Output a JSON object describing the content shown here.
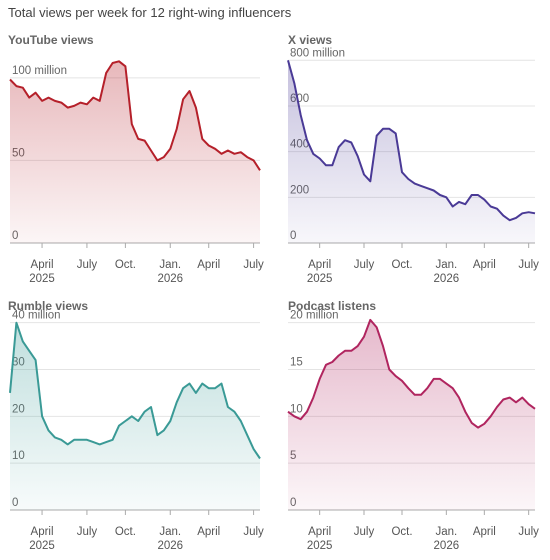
{
  "title": "Total views per week for 12 right-wing influencers",
  "chart_data": [
    {
      "type": "area",
      "title": "YouTube views",
      "color": "#b5202a",
      "categories": [
        null,
        null,
        null,
        null,
        null,
        "April 2025",
        null,
        null,
        null,
        null,
        null,
        null,
        "July",
        null,
        null,
        null,
        null,
        null,
        "Oct.",
        null,
        null,
        null,
        null,
        null,
        null,
        "Jan. 2026",
        null,
        null,
        null,
        null,
        null,
        "April",
        null,
        null,
        null,
        null,
        null,
        null,
        "July",
        null
      ],
      "values": [
        99,
        95,
        94,
        88,
        91,
        86,
        88,
        86,
        85,
        82,
        83,
        85,
        84,
        88,
        86,
        103,
        109,
        110,
        107,
        72,
        63,
        62,
        56,
        50,
        52,
        57,
        69,
        87,
        92,
        82,
        63,
        59,
        57,
        54,
        56,
        54,
        55,
        52,
        50,
        44
      ],
      "ylim": [
        0,
        112
      ],
      "yticks": [
        0,
        50,
        {
          "value": 100,
          "label": "100 million"
        }
      ],
      "grid": true
    },
    {
      "type": "area",
      "title": "X views",
      "color": "#4a3a96",
      "categories": [
        null,
        null,
        null,
        null,
        null,
        "April 2025",
        null,
        null,
        null,
        null,
        null,
        null,
        "July",
        null,
        null,
        null,
        null,
        null,
        "Oct.",
        null,
        null,
        null,
        null,
        null,
        null,
        "Jan. 2026",
        null,
        null,
        null,
        null,
        null,
        "April",
        null,
        null,
        null,
        null,
        null,
        null,
        "July",
        null
      ],
      "values": [
        800,
        700,
        560,
        450,
        390,
        370,
        340,
        340,
        420,
        450,
        440,
        380,
        300,
        270,
        470,
        500,
        500,
        480,
        310,
        280,
        260,
        250,
        240,
        230,
        210,
        200,
        160,
        180,
        170,
        210,
        210,
        190,
        160,
        150,
        120,
        100,
        110,
        130,
        135,
        130
      ],
      "ylim": [
        0,
        810
      ],
      "yticks": [
        0,
        200,
        400,
        600,
        {
          "value": 800,
          "label": "800 million"
        }
      ],
      "grid": true
    },
    {
      "type": "area",
      "title": "Rumble views",
      "color": "#3a9a96",
      "categories": [
        null,
        null,
        null,
        null,
        null,
        "April 2025",
        null,
        null,
        null,
        null,
        null,
        null,
        "July",
        null,
        null,
        null,
        null,
        null,
        "Oct.",
        null,
        null,
        null,
        null,
        null,
        null,
        "Jan. 2026",
        null,
        null,
        null,
        null,
        null,
        "April",
        null,
        null,
        null,
        null,
        null,
        null,
        "July",
        null
      ],
      "values": [
        25,
        40,
        36,
        34,
        32,
        20,
        17,
        15.5,
        15,
        14,
        15,
        15,
        15,
        14.5,
        14,
        14.5,
        15,
        18,
        19,
        20,
        19,
        21,
        22,
        16,
        17,
        19,
        23,
        26,
        27,
        25,
        27,
        26,
        26,
        27,
        22,
        21,
        19,
        16,
        13,
        11
      ],
      "ylim": [
        0,
        41
      ],
      "yticks": [
        0,
        10,
        20,
        30,
        {
          "value": 40,
          "label": "40 million"
        }
      ],
      "grid": true
    },
    {
      "type": "area",
      "title": "Podcast listens",
      "color": "#b0255f",
      "categories": [
        null,
        null,
        null,
        null,
        null,
        "April 2025",
        null,
        null,
        null,
        null,
        null,
        null,
        "July",
        null,
        null,
        null,
        null,
        null,
        "Oct.",
        null,
        null,
        null,
        null,
        null,
        null,
        "Jan. 2026",
        null,
        null,
        null,
        null,
        null,
        "April",
        null,
        null,
        null,
        null,
        null,
        null,
        "July",
        null
      ],
      "values": [
        10.5,
        10,
        9.7,
        10.5,
        12,
        14,
        15.5,
        15.8,
        16.5,
        17,
        17,
        17.5,
        18.5,
        20.3,
        19.5,
        17.5,
        15,
        14.3,
        13.8,
        13,
        12.3,
        12.3,
        13,
        14,
        14,
        13.5,
        13,
        12,
        10.5,
        9.3,
        8.8,
        9.2,
        10,
        11,
        11.8,
        12,
        11.5,
        12,
        11.3,
        10.8
      ],
      "ylim": [
        0,
        20.5
      ],
      "yticks": [
        0,
        5,
        10,
        15,
        {
          "value": 20,
          "label": "20 million"
        }
      ],
      "grid": true
    }
  ]
}
